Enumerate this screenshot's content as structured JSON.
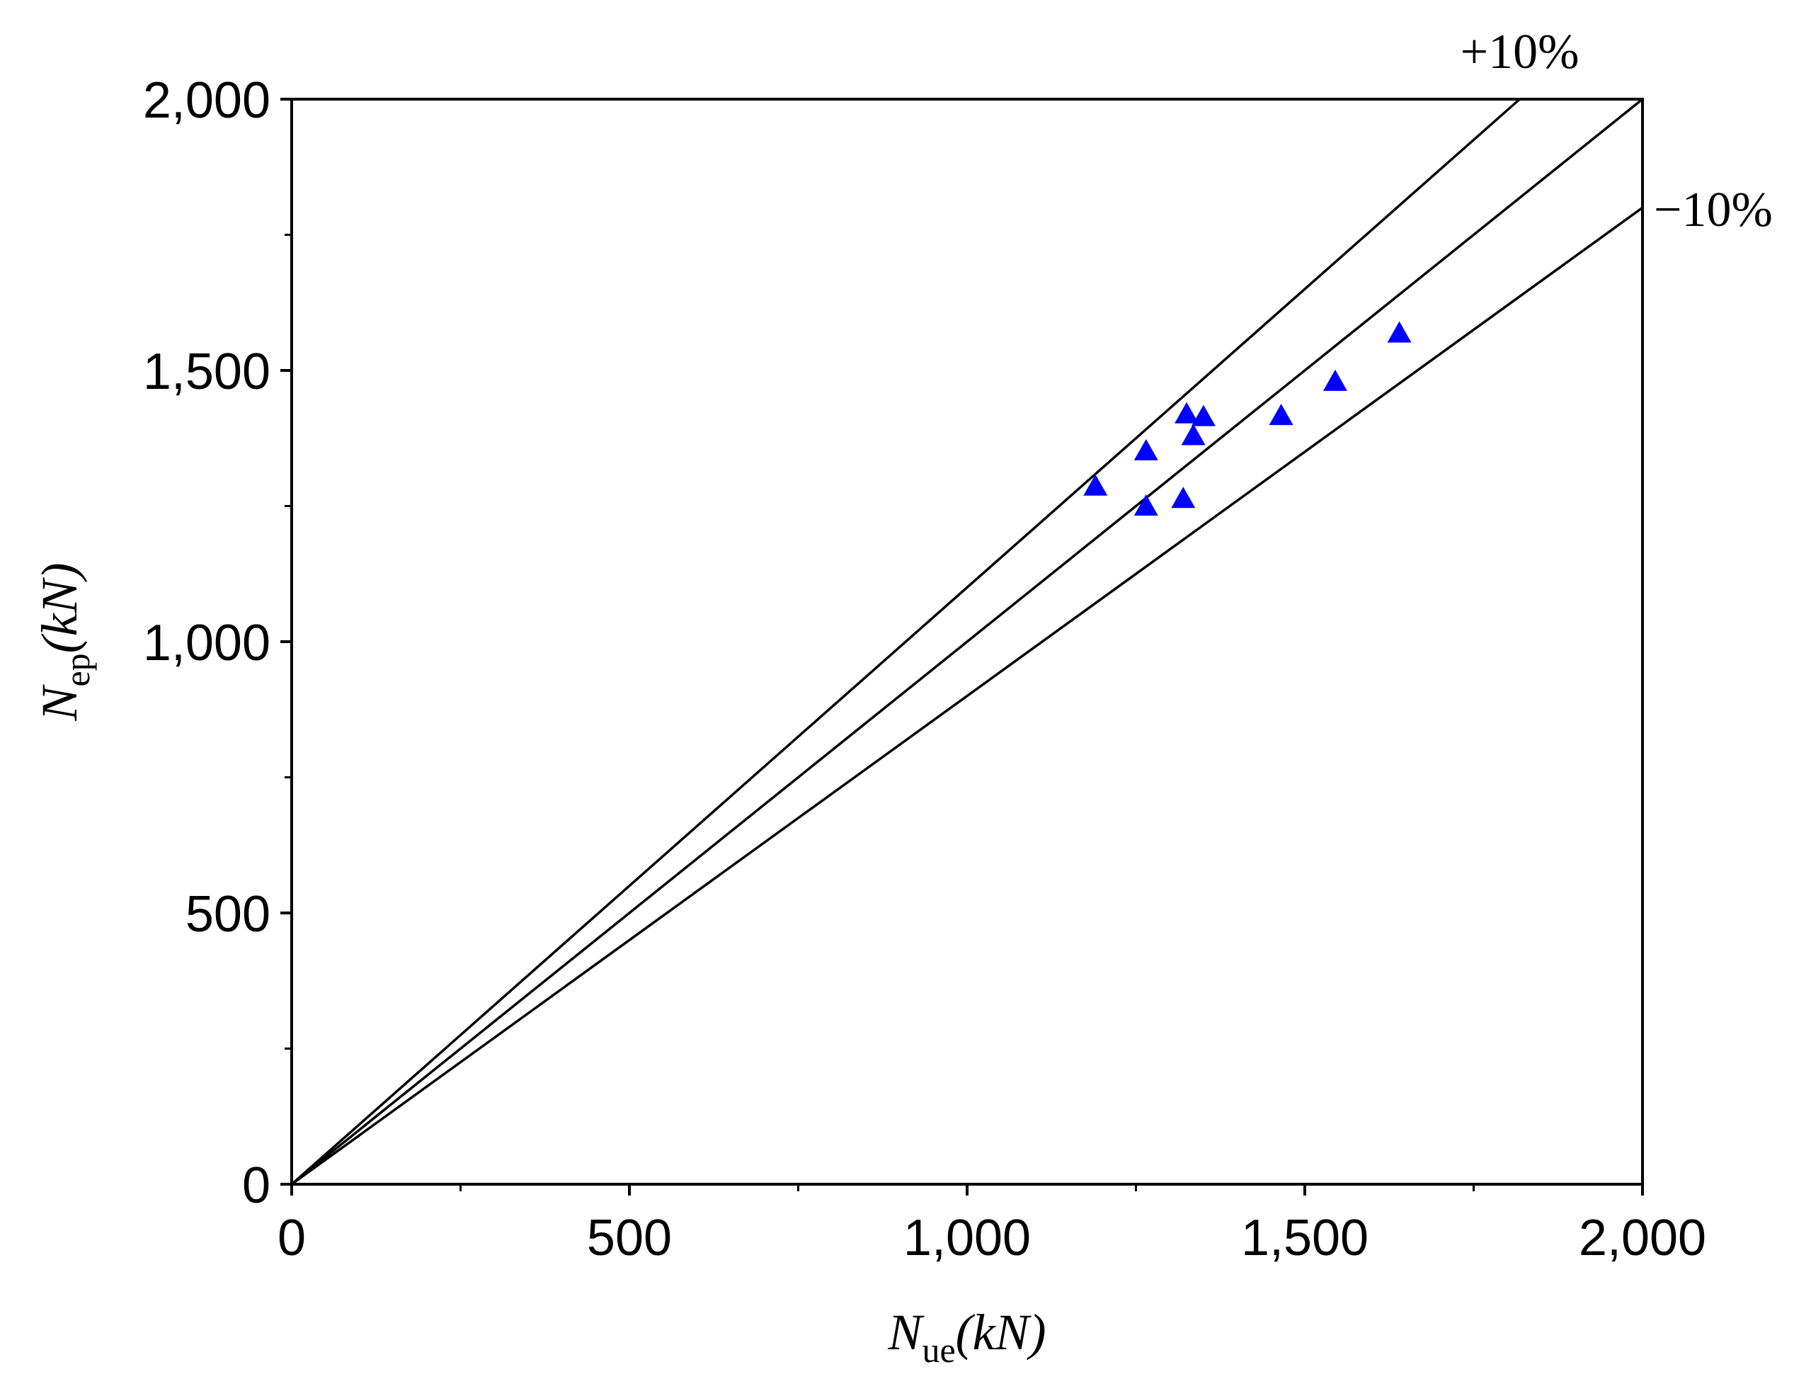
{
  "chart_data": {
    "type": "scatter",
    "title": "",
    "xlabel": {
      "main": "N",
      "sub": "ue",
      "unit": "(kN)"
    },
    "ylabel": {
      "main": "N",
      "sub": "ep",
      "unit": "(kN)"
    },
    "xlim": [
      0,
      2000
    ],
    "ylim": [
      0,
      2000
    ],
    "x_ticks": [
      0,
      500,
      1000,
      1500,
      2000
    ],
    "y_ticks": [
      0,
      500,
      1000,
      1500,
      2000
    ],
    "x_tick_labels": [
      "0",
      "500",
      "1,000",
      "1,500",
      "2,000"
    ],
    "y_tick_labels": [
      "0",
      "500",
      "1,000",
      "1,500",
      "2,000"
    ],
    "minor_ticks": [
      250,
      750,
      1250,
      1750
    ],
    "grid": false,
    "series": [
      {
        "marker": "triangle",
        "color": "#0000ff",
        "points": [
          {
            "x": 1190,
            "y": 1285
          },
          {
            "x": 1265,
            "y": 1350
          },
          {
            "x": 1265,
            "y": 1248
          },
          {
            "x": 1320,
            "y": 1262
          },
          {
            "x": 1325,
            "y": 1418
          },
          {
            "x": 1335,
            "y": 1378
          },
          {
            "x": 1350,
            "y": 1413
          },
          {
            "x": 1465,
            "y": 1415
          },
          {
            "x": 1545,
            "y": 1478
          },
          {
            "x": 1640,
            "y": 1567
          }
        ]
      }
    ],
    "reference_lines": [
      {
        "slope": 1.1,
        "label": "+10%"
      },
      {
        "slope": 1.0,
        "label": ""
      },
      {
        "slope": 0.9,
        "label": "−10%"
      }
    ]
  }
}
